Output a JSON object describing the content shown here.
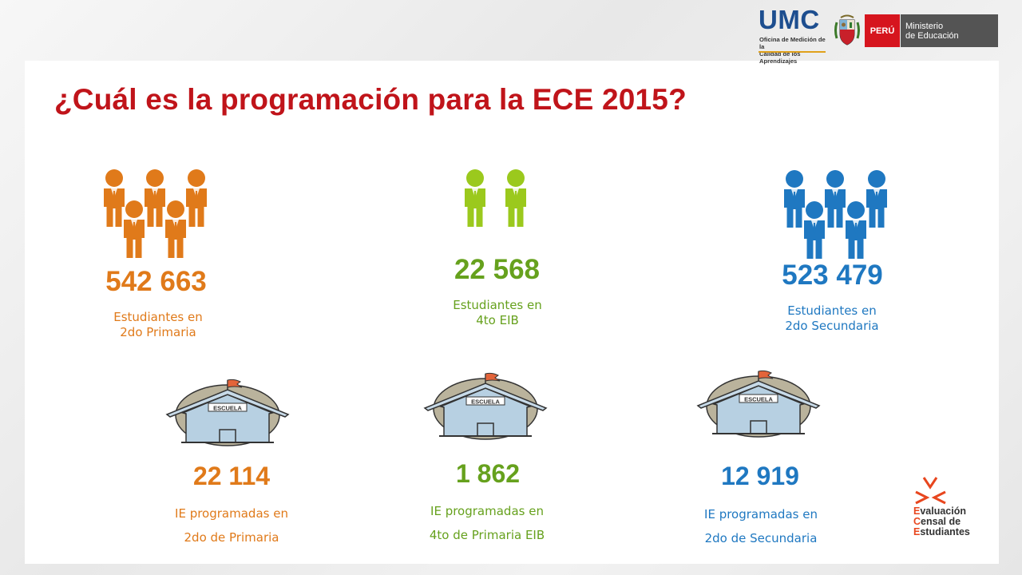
{
  "header": {
    "logo_main": "UMC",
    "logo_sub_line1": "Oficina de Medición de la",
    "logo_sub_line2": "Calidad de los Aprendizajes",
    "peru_label": "PERÚ",
    "ministry_line1": "Ministerio",
    "ministry_line2": "de Educación"
  },
  "title": "¿Cuál es la programación para la ECE 2015?",
  "students": [
    {
      "value": "542 663",
      "line1": "Estudiantes en",
      "line2": "2do Primaria",
      "color": "#e07a1a"
    },
    {
      "value": "22 568",
      "line1": "Estudiantes en",
      "line2": "4to EIB",
      "color": "#66a11d"
    },
    {
      "value": "523 479",
      "line1": "Estudiantes en",
      "line2": "2do Secundaria",
      "color": "#1f78c1"
    }
  ],
  "schools": [
    {
      "value": "22 114",
      "line1": "IE programadas en",
      "line2": "2do de Primaria",
      "color": "#e07a1a"
    },
    {
      "value": "1 862",
      "line1": "IE programadas en",
      "line2": "4to de Primaria EIB",
      "color": "#66a11d"
    },
    {
      "value": "12 919",
      "line1": "IE programadas en",
      "line2": "2do de Secundaria",
      "color": "#1f78c1"
    }
  ],
  "school_sign": "ESCUELA",
  "footer_logo": {
    "line1_first": "E",
    "line1_rest": "valuación",
    "line2_first": "C",
    "line2_rest": "ensal de",
    "line3_first": "E",
    "line3_rest": "studiantes"
  }
}
